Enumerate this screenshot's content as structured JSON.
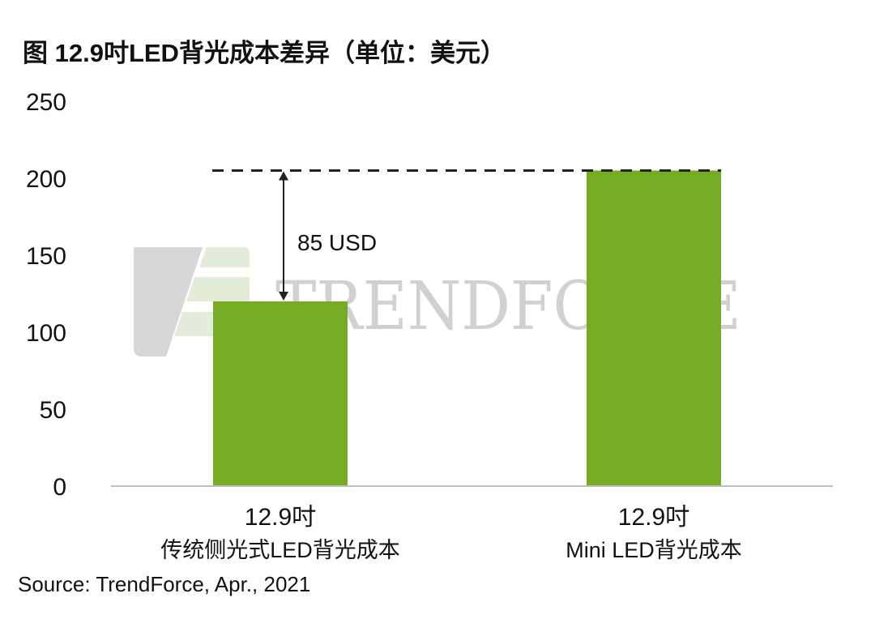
{
  "title": "图 12.9吋LED背光成本差异（单位：美元）",
  "source": "Source: TrendForce, Apr., 2021",
  "watermark": "TRENDFORCE",
  "colors": {
    "bar": "#75ac23",
    "axis": "#bfbfbf",
    "text": "#111111"
  },
  "chart_data": {
    "type": "bar",
    "categories": [
      [
        "12.9吋",
        "传统侧光式LED背光成本"
      ],
      [
        "12.9吋",
        "Mini LED背光成本"
      ]
    ],
    "values": [
      120,
      205
    ],
    "ylim": [
      0,
      250
    ],
    "yticks": [
      0,
      50,
      100,
      150,
      200,
      250
    ],
    "grid": false,
    "annotation": {
      "text": "85 USD",
      "from": 120,
      "to": 205
    }
  }
}
